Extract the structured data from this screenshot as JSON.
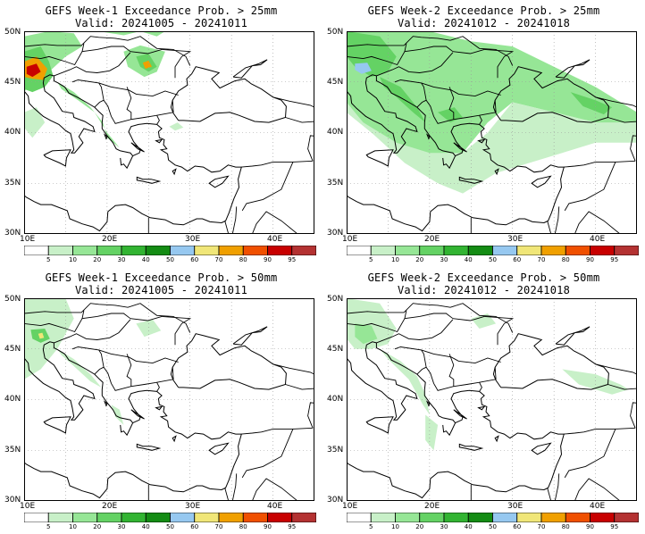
{
  "panels": [
    {
      "title1": "GEFS Week-1 Exceedance Prob. > 25mm",
      "title2": "Valid: 20241005 - 20241011",
      "week": 1,
      "threshold_mm": 25
    },
    {
      "title1": "GEFS Week-2 Exceedance Prob. > 25mm",
      "title2": "Valid: 20241012 - 20241018",
      "week": 2,
      "threshold_mm": 25
    },
    {
      "title1": "GEFS Week-1 Exceedance Prob. > 50mm",
      "title2": "Valid: 20241005 - 20241011",
      "week": 1,
      "threshold_mm": 50
    },
    {
      "title1": "GEFS Week-2 Exceedance Prob. > 50mm",
      "title2": "Valid: 20241012 - 20241018",
      "week": 2,
      "threshold_mm": 50
    }
  ],
  "lat_labels": [
    "50N",
    "45N",
    "40N",
    "35N",
    "30N"
  ],
  "lon_labels": [
    "10E",
    "20E",
    "30E",
    "40E"
  ],
  "colorbar": {
    "labels": [
      "5",
      "10",
      "20",
      "30",
      "40",
      "50",
      "60",
      "70",
      "80",
      "90",
      "95"
    ],
    "colors": [
      "#ffffff",
      "#c8f0c8",
      "#96e696",
      "#64d264",
      "#32b432",
      "#148c14",
      "#96c8f0",
      "#f0e678",
      "#f0a000",
      "#f05000",
      "#c80000",
      "#b43232"
    ]
  }
}
